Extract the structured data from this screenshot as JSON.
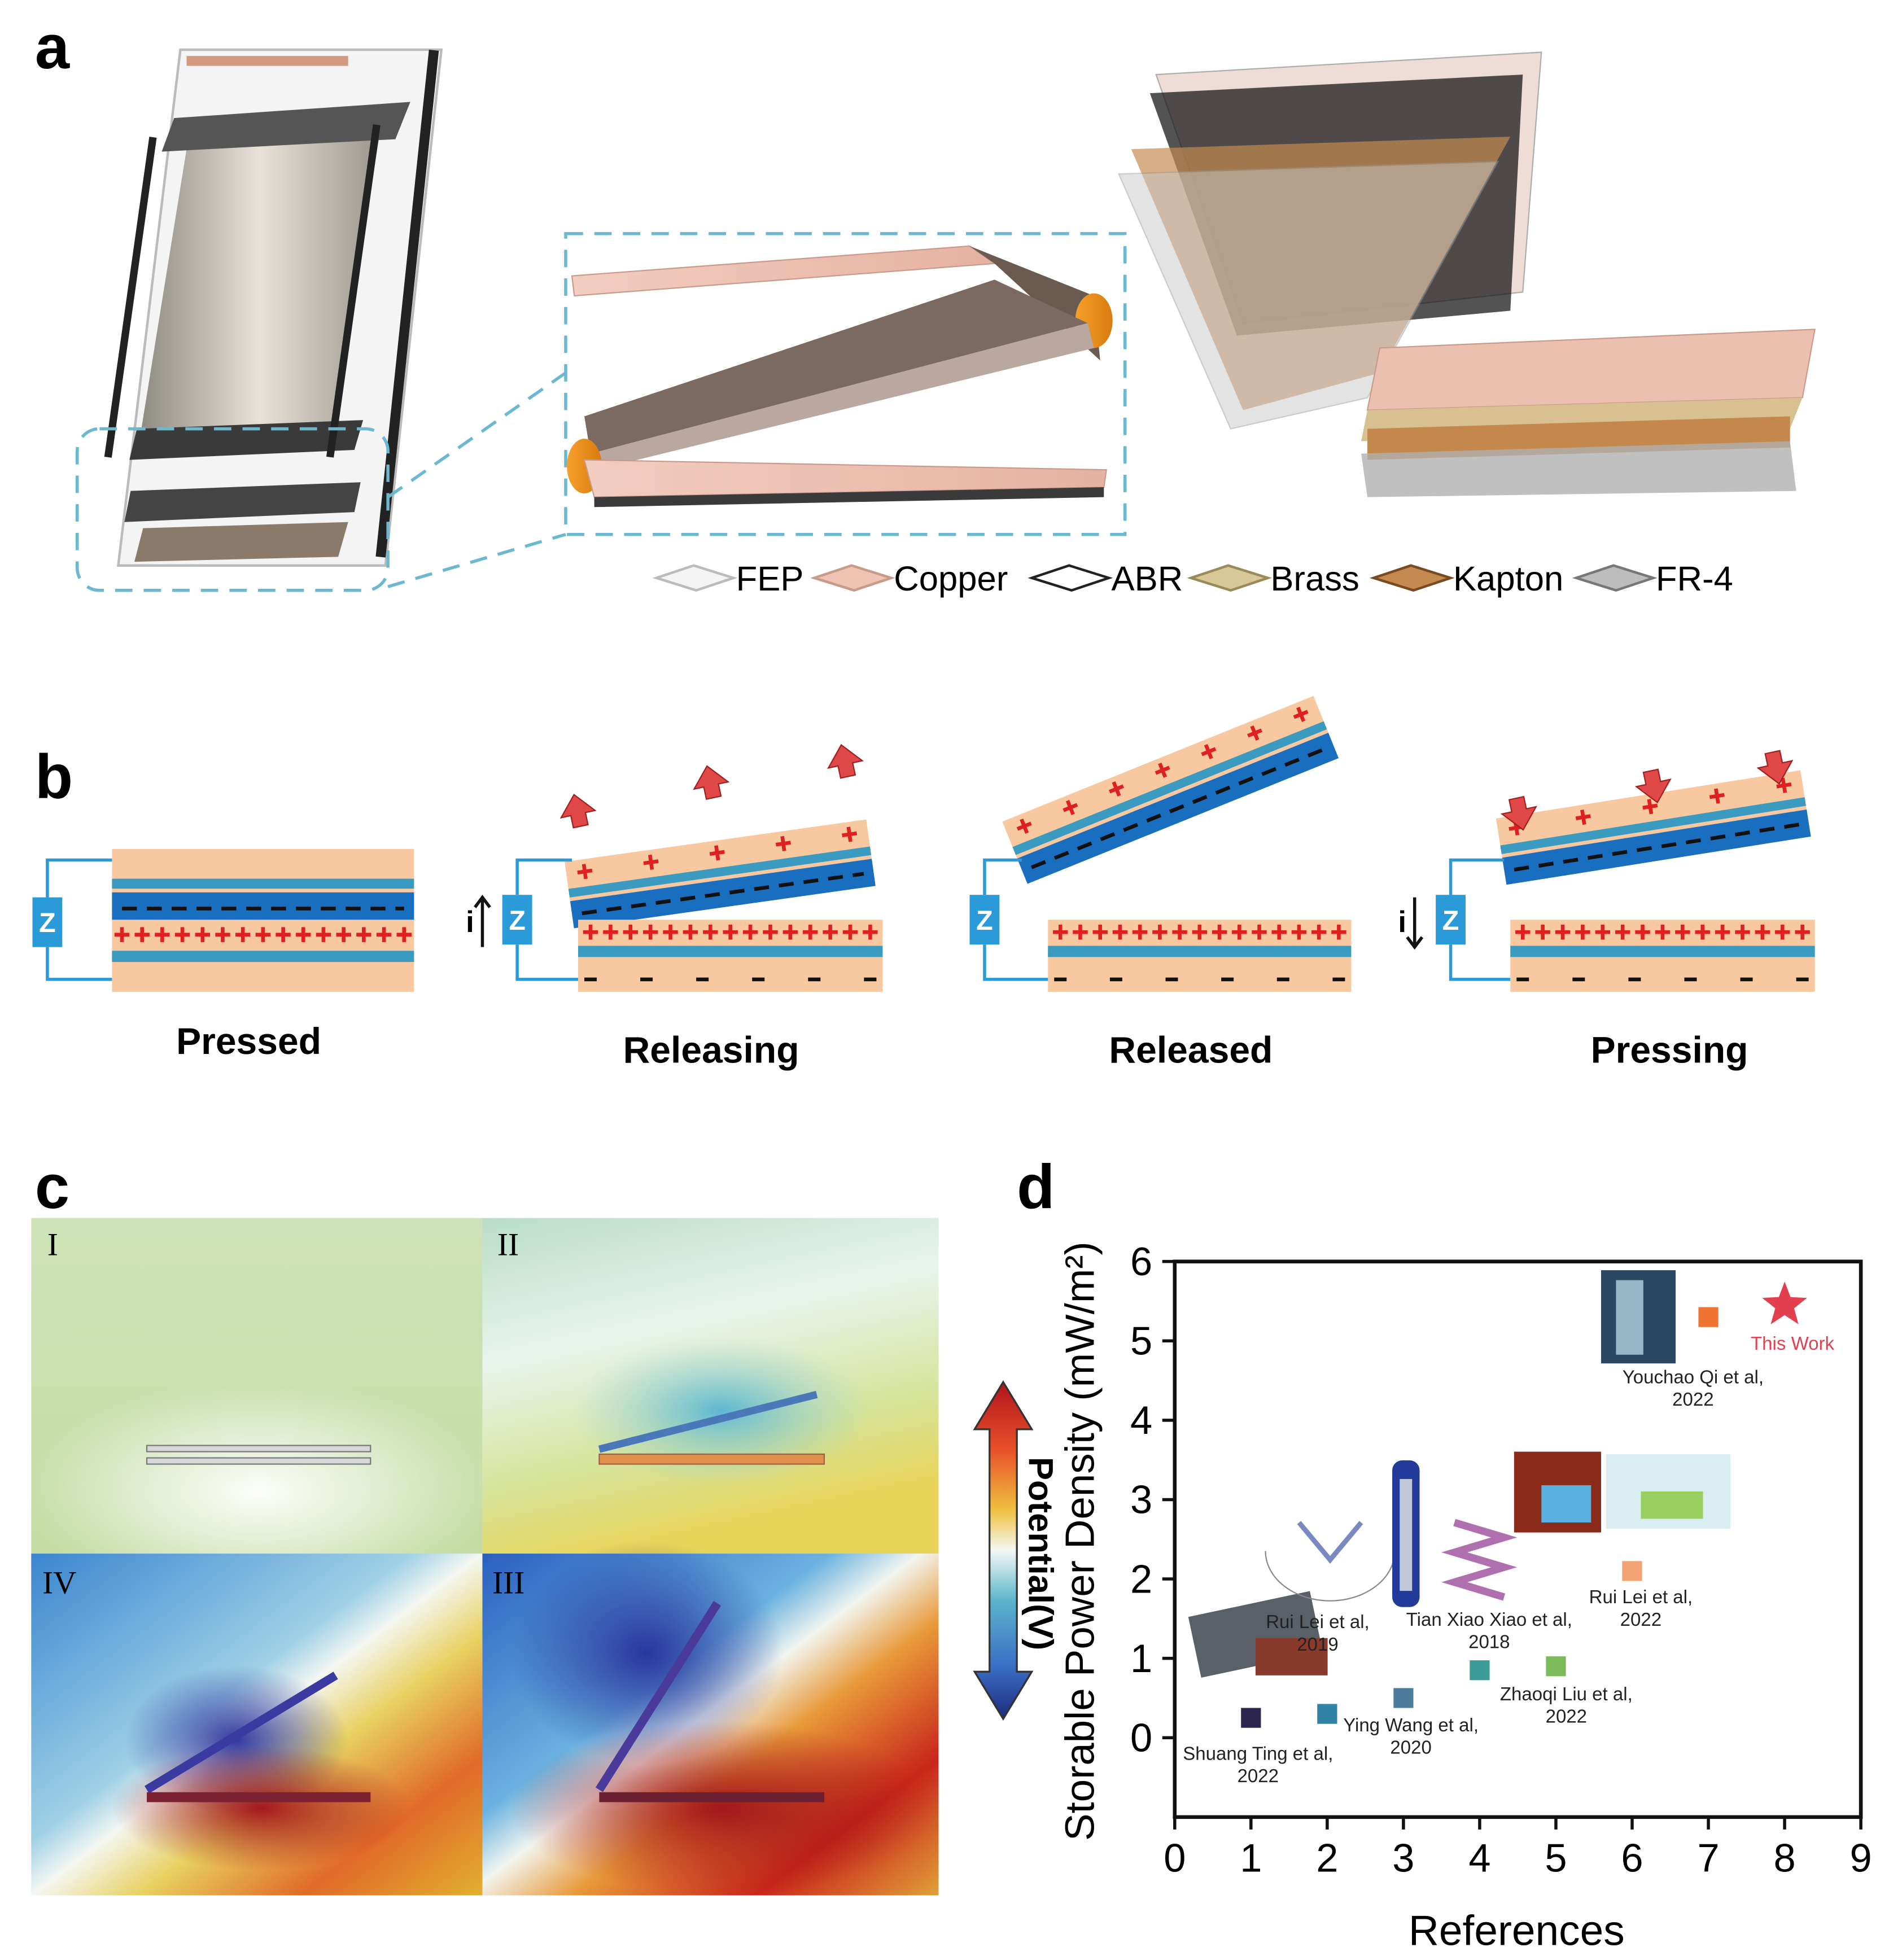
{
  "panel_labels": [
    "a",
    "b",
    "c",
    "d"
  ],
  "panel_a": {
    "legend": [
      "FEP",
      "Copper",
      "ABR",
      "Brass",
      "Kapton",
      "FR-4"
    ]
  },
  "panel_b": {
    "states": [
      "Pressed",
      "Releasing",
      "Released",
      "Pressing"
    ],
    "load_label": "Z",
    "current_label": "i"
  },
  "panel_c": {
    "subplots": [
      "I",
      "II",
      "IV",
      "III"
    ],
    "colorbar_label": "Potential(V)"
  },
  "chart_data": {
    "type": "scatter",
    "x_label": "References",
    "y_label": "Storable Power Density (mW/m²)",
    "x": [
      1,
      2,
      3,
      4,
      5,
      6,
      7,
      8
    ],
    "values": [
      0.25,
      0.3,
      0.5,
      0.85,
      0.9,
      2.1,
      5.3,
      5.45
    ],
    "colors": [
      "#2b2550",
      "#2f82a4",
      "#4d7d9c",
      "#3b9c9a",
      "#7cba5c",
      "#f2a274",
      "#ef7432",
      "#e2404f"
    ],
    "markers": [
      "square",
      "square",
      "square",
      "square",
      "square",
      "square",
      "square",
      "star"
    ],
    "point_labels": [
      [
        "Shuang Ting et al,",
        "2022"
      ],
      [
        "Rui Lei et al,",
        "2019"
      ],
      [
        "Ying Wang et al,",
        "2020"
      ],
      [
        "Tian Xiao Xiao et al,",
        "2018"
      ],
      [
        "Zhaoqi Liu et al,",
        "2022"
      ],
      [
        "Rui Lei et al,",
        "2022"
      ],
      [
        "Youchao Qi et al,",
        "2022"
      ],
      [
        "This Work"
      ]
    ],
    "xlim": [
      0,
      9
    ],
    "ylim": [
      -1,
      6
    ],
    "xticks": [
      0,
      1,
      2,
      3,
      4,
      5,
      6,
      7,
      8,
      9
    ],
    "yticks": [
      0,
      1,
      2,
      3,
      4,
      5,
      6
    ]
  }
}
